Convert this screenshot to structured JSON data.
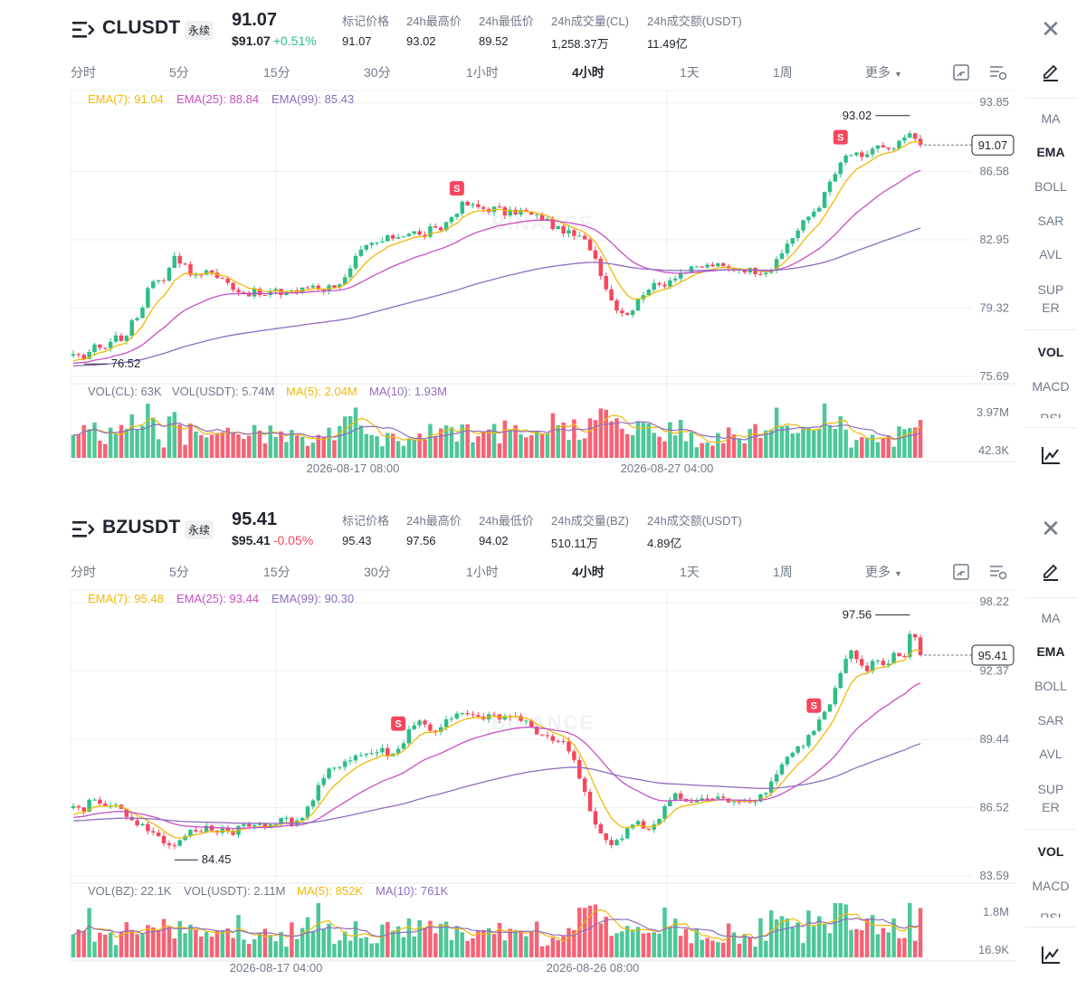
{
  "panels": [
    {
      "symbol": "CLUSDT",
      "perp_label": "永续",
      "last_price": "91.07",
      "usd_price": "$91.07",
      "change": "+0.51%",
      "change_color": "#2ebd85",
      "stats": [
        {
          "label": "标记价格",
          "value": "91.07"
        },
        {
          "label": "24h最高价",
          "value": "93.02"
        },
        {
          "label": "24h最低价",
          "value": "89.52"
        },
        {
          "label": "24h成交量(CL)",
          "value": "1,258.37万"
        },
        {
          "label": "24h成交额(USDT)",
          "value": "11.49亿"
        }
      ],
      "timeframes": [
        "分时",
        "5分",
        "15分",
        "30分",
        "1小时",
        "4小时",
        "1天",
        "1周",
        "更多"
      ],
      "active_timeframe": "4小时",
      "ema_legend": {
        "ema7": "EMA(7): 91.04",
        "ema25": "EMA(25): 88.84",
        "ema99": "EMA(99): 85.43"
      },
      "vol_legend": {
        "vol": "VOL(CL): 63K",
        "vol_usdt": "VOL(USDT): 5.74M",
        "ma5": "MA(5): 2.04M",
        "ma10": "MA(10): 1.93M"
      },
      "y_ticks": [
        "93.85",
        "86.58",
        "82.95",
        "79.32",
        "75.69"
      ],
      "vol_ticks": [
        "3.97M",
        "42.3K"
      ],
      "current_price_tag": "91.07",
      "max_label": "93.02",
      "min_label": "76.52",
      "x_dates": [
        "2026-08-17 08:00",
        "2026-08-27 04:00"
      ],
      "watermark": "BINANCE",
      "side_items": [
        "MA",
        "EMA",
        "BOLL",
        "SAR",
        "AVL",
        "SUPER",
        "VOL",
        "MACD",
        "RSI"
      ],
      "side_active": [
        "EMA",
        "VOL"
      ],
      "chart_data": {
        "type": "candlestick",
        "interval": "4小时",
        "ylim": [
          75.69,
          93.85
        ],
        "close_path": [
          77.0,
          76.9,
          77.4,
          77.8,
          77.6,
          78.4,
          78.1,
          79.2,
          79.8,
          81.6,
          82.4,
          81.9,
          83.9,
          83.3,
          82.6,
          82.2,
          82.9,
          82.4,
          82.1,
          81.7,
          81.4,
          81.2,
          81.3,
          81.0,
          81.4,
          81.2,
          81.5,
          81.3,
          81.6,
          81.8,
          81.5,
          81.7,
          81.9,
          82.3,
          83.5,
          84.2,
          84.5,
          84.6,
          84.9,
          85.0,
          85.2,
          85.3,
          84.9,
          85.5,
          85.3,
          86.0,
          86.6,
          87.2,
          87.0,
          86.9,
          86.8,
          86.9,
          86.5,
          86.6,
          86.7,
          86.4,
          86.3,
          86.1,
          85.5,
          85.4,
          85.1,
          84.9,
          84.5,
          83.4,
          81.8,
          80.5,
          80.0,
          79.9,
          80.7,
          81.6,
          81.7,
          81.8,
          82.2,
          82.6,
          82.7,
          82.9,
          83.0,
          83.1,
          83.0,
          82.8,
          82.9,
          82.8,
          82.7,
          82.7,
          82.8,
          83.5,
          84.6,
          85.2,
          86.0,
          86.6,
          87.2,
          88.5,
          89.4,
          90.3,
          90.5,
          90.1,
          90.8,
          91.0,
          90.6,
          90.9,
          91.5,
          91.8,
          91.07
        ],
        "ema7_last": 91.04,
        "ema25_last": 88.84,
        "ema99_last": 85.43,
        "high": 93.02,
        "low": 76.52
      }
    },
    {
      "symbol": "BZUSDT",
      "perp_label": "永续",
      "last_price": "95.41",
      "usd_price": "$95.41",
      "change": "-0.05%",
      "change_color": "#f6465d",
      "stats": [
        {
          "label": "标记价格",
          "value": "95.43"
        },
        {
          "label": "24h最高价",
          "value": "97.56"
        },
        {
          "label": "24h最低价",
          "value": "94.02"
        },
        {
          "label": "24h成交量(BZ)",
          "value": "510.11万"
        },
        {
          "label": "24h成交额(USDT)",
          "value": "4.89亿"
        }
      ],
      "timeframes": [
        "分时",
        "5分",
        "15分",
        "30分",
        "1小时",
        "4小时",
        "1天",
        "1周",
        "更多"
      ],
      "active_timeframe": "4小时",
      "ema_legend": {
        "ema7": "EMA(7): 95.48",
        "ema25": "EMA(25): 93.44",
        "ema99": "EMA(99): 90.30"
      },
      "vol_legend": {
        "vol": "VOL(BZ): 22.1K",
        "vol_usdt": "VOL(USDT): 2.11M",
        "ma5": "MA(5): 852K",
        "ma10": "MA(10): 761K"
      },
      "y_ticks": [
        "98.22",
        "92.37",
        "89.44",
        "86.52",
        "83.59"
      ],
      "vol_ticks": [
        "1.8M",
        "16.9K"
      ],
      "current_price_tag": "95.41",
      "max_label": "97.56",
      "min_label": "84.45",
      "x_dates": [
        "2026-08-17 04:00",
        "2026-08-26 08:00"
      ],
      "watermark": "BINANCE",
      "side_items": [
        "MA",
        "EMA",
        "BOLL",
        "SAR",
        "AVL",
        "SUPER",
        "VOL",
        "MACD",
        "RSI"
      ],
      "side_active": [
        "EMA",
        "VOL"
      ],
      "chart_data": {
        "type": "candlestick",
        "interval": "4小时",
        "ylim": [
          83.59,
          98.22
        ],
        "close_path": [
          87.2,
          87.0,
          87.8,
          87.4,
          87.5,
          87.2,
          86.9,
          86.5,
          86.2,
          85.9,
          85.5,
          85.2,
          85.4,
          86.0,
          85.8,
          86.2,
          86.0,
          86.1,
          85.9,
          86.3,
          86.2,
          86.4,
          86.3,
          86.5,
          86.6,
          86.4,
          86.8,
          87.5,
          88.5,
          89.2,
          89.5,
          89.8,
          90.0,
          90.1,
          90.2,
          90.3,
          90.0,
          90.4,
          91.4,
          91.9,
          91.6,
          91.3,
          91.8,
          92.0,
          92.3,
          92.1,
          92.0,
          92.2,
          92.0,
          92.1,
          92.1,
          91.9,
          91.5,
          91.2,
          91.0,
          90.8,
          90.5,
          89.5,
          88.0,
          86.5,
          85.6,
          85.2,
          85.5,
          86.2,
          86.4,
          86.0,
          86.5,
          87.3,
          87.9,
          87.7,
          87.5,
          87.6,
          87.8,
          87.7,
          87.6,
          87.7,
          87.6,
          87.7,
          87.9,
          88.5,
          89.4,
          90.0,
          90.4,
          90.8,
          91.5,
          92.2,
          93.0,
          94.5,
          95.6,
          94.9,
          94.6,
          95.2,
          94.8,
          95.5,
          95.1,
          96.9,
          95.41
        ],
        "ema7_last": 95.48,
        "ema25_last": 93.44,
        "ema99_last": 90.3,
        "high": 97.56,
        "low": 84.45
      }
    }
  ]
}
